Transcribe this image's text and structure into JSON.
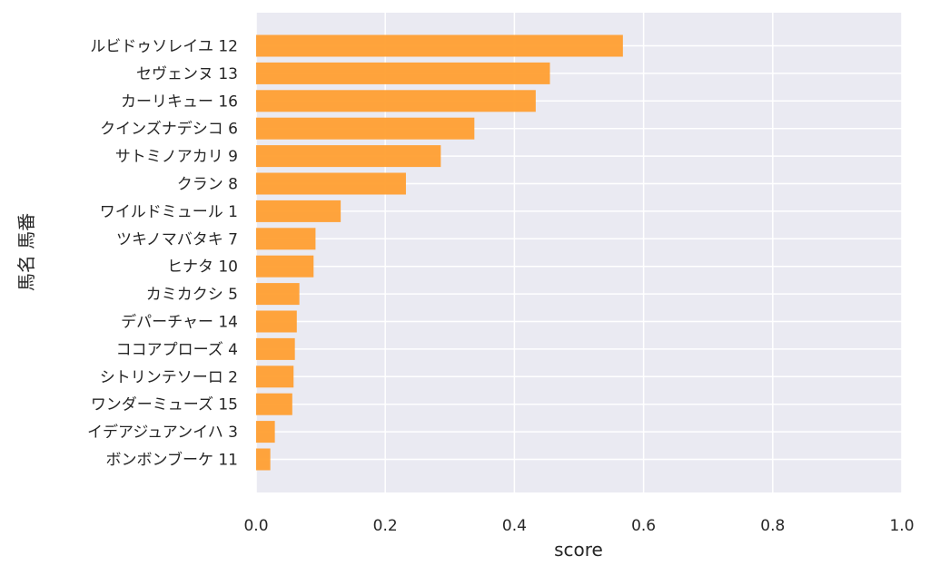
{
  "chart_data": {
    "type": "bar",
    "orientation": "horizontal",
    "xlabel": "score",
    "ylabel": "馬名 馬番",
    "xlim": [
      0.0,
      1.0
    ],
    "xticks": [
      "0.0",
      "0.2",
      "0.4",
      "0.6",
      "0.8",
      "1.0"
    ],
    "grid": true,
    "bar_color": "#ff9f32",
    "background_color": "#eaeaf2",
    "categories": [
      "ルビドゥソレイユ 12",
      "セヴェンヌ 13",
      "カーリキュー 16",
      "クインズナデシコ 6",
      "サトミノアカリ 9",
      "クラン 8",
      "ワイルドミュール 1",
      "ツキノマバタキ 7",
      "ヒナタ 10",
      "カミカクシ 5",
      "デパーチャー 14",
      "ココアプローズ 4",
      "シトリンテソーロ 2",
      "ワンダーミューズ 15",
      "イデアジュアンイハ 3",
      "ボンボンブーケ 11"
    ],
    "values": [
      0.568,
      0.455,
      0.433,
      0.338,
      0.286,
      0.232,
      0.131,
      0.092,
      0.089,
      0.067,
      0.063,
      0.06,
      0.058,
      0.056,
      0.029,
      0.022
    ]
  }
}
